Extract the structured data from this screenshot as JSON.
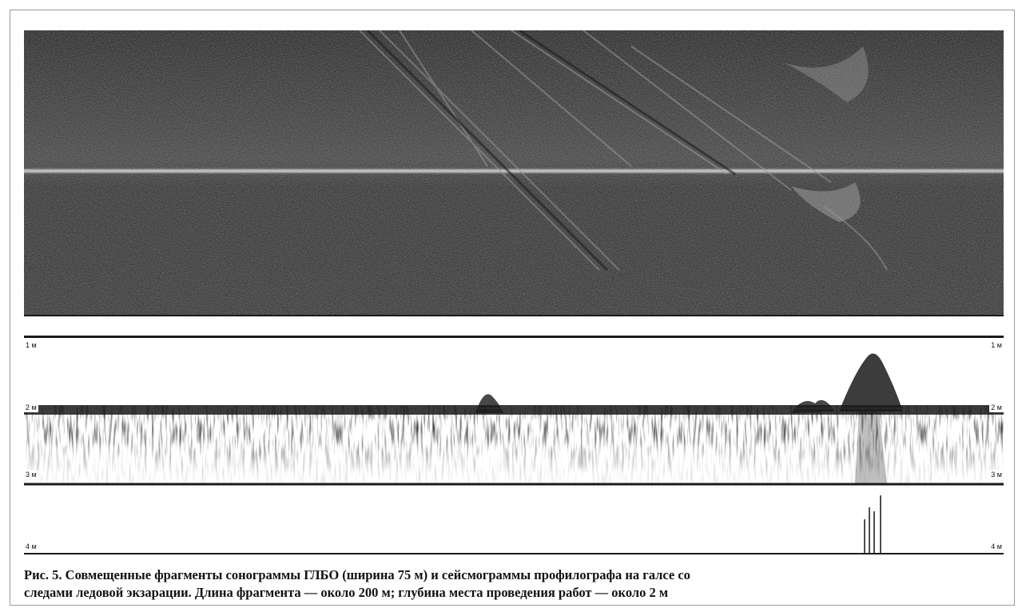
{
  "figure": {
    "depth_labels_left": [
      "1 м",
      "2 м",
      "3 м",
      "4 м"
    ],
    "depth_labels_right": [
      "1 м",
      "2 м",
      "3 м",
      "4 м"
    ],
    "caption_line1": "Рис. 5. Совмещенные фрагменты сонограммы ГЛБО (ширина 75 м) и сейсмограммы профилографа на галсе со",
    "caption_line2": "следами ледовой экзарации. Длина фрагмента — около 200 м; глубина места проведения работ — около 2 м"
  },
  "colors": {
    "sonogram_background": "#3a3a3a",
    "profile_background": "#ffffff",
    "depth_line": "#1a1a1a"
  }
}
